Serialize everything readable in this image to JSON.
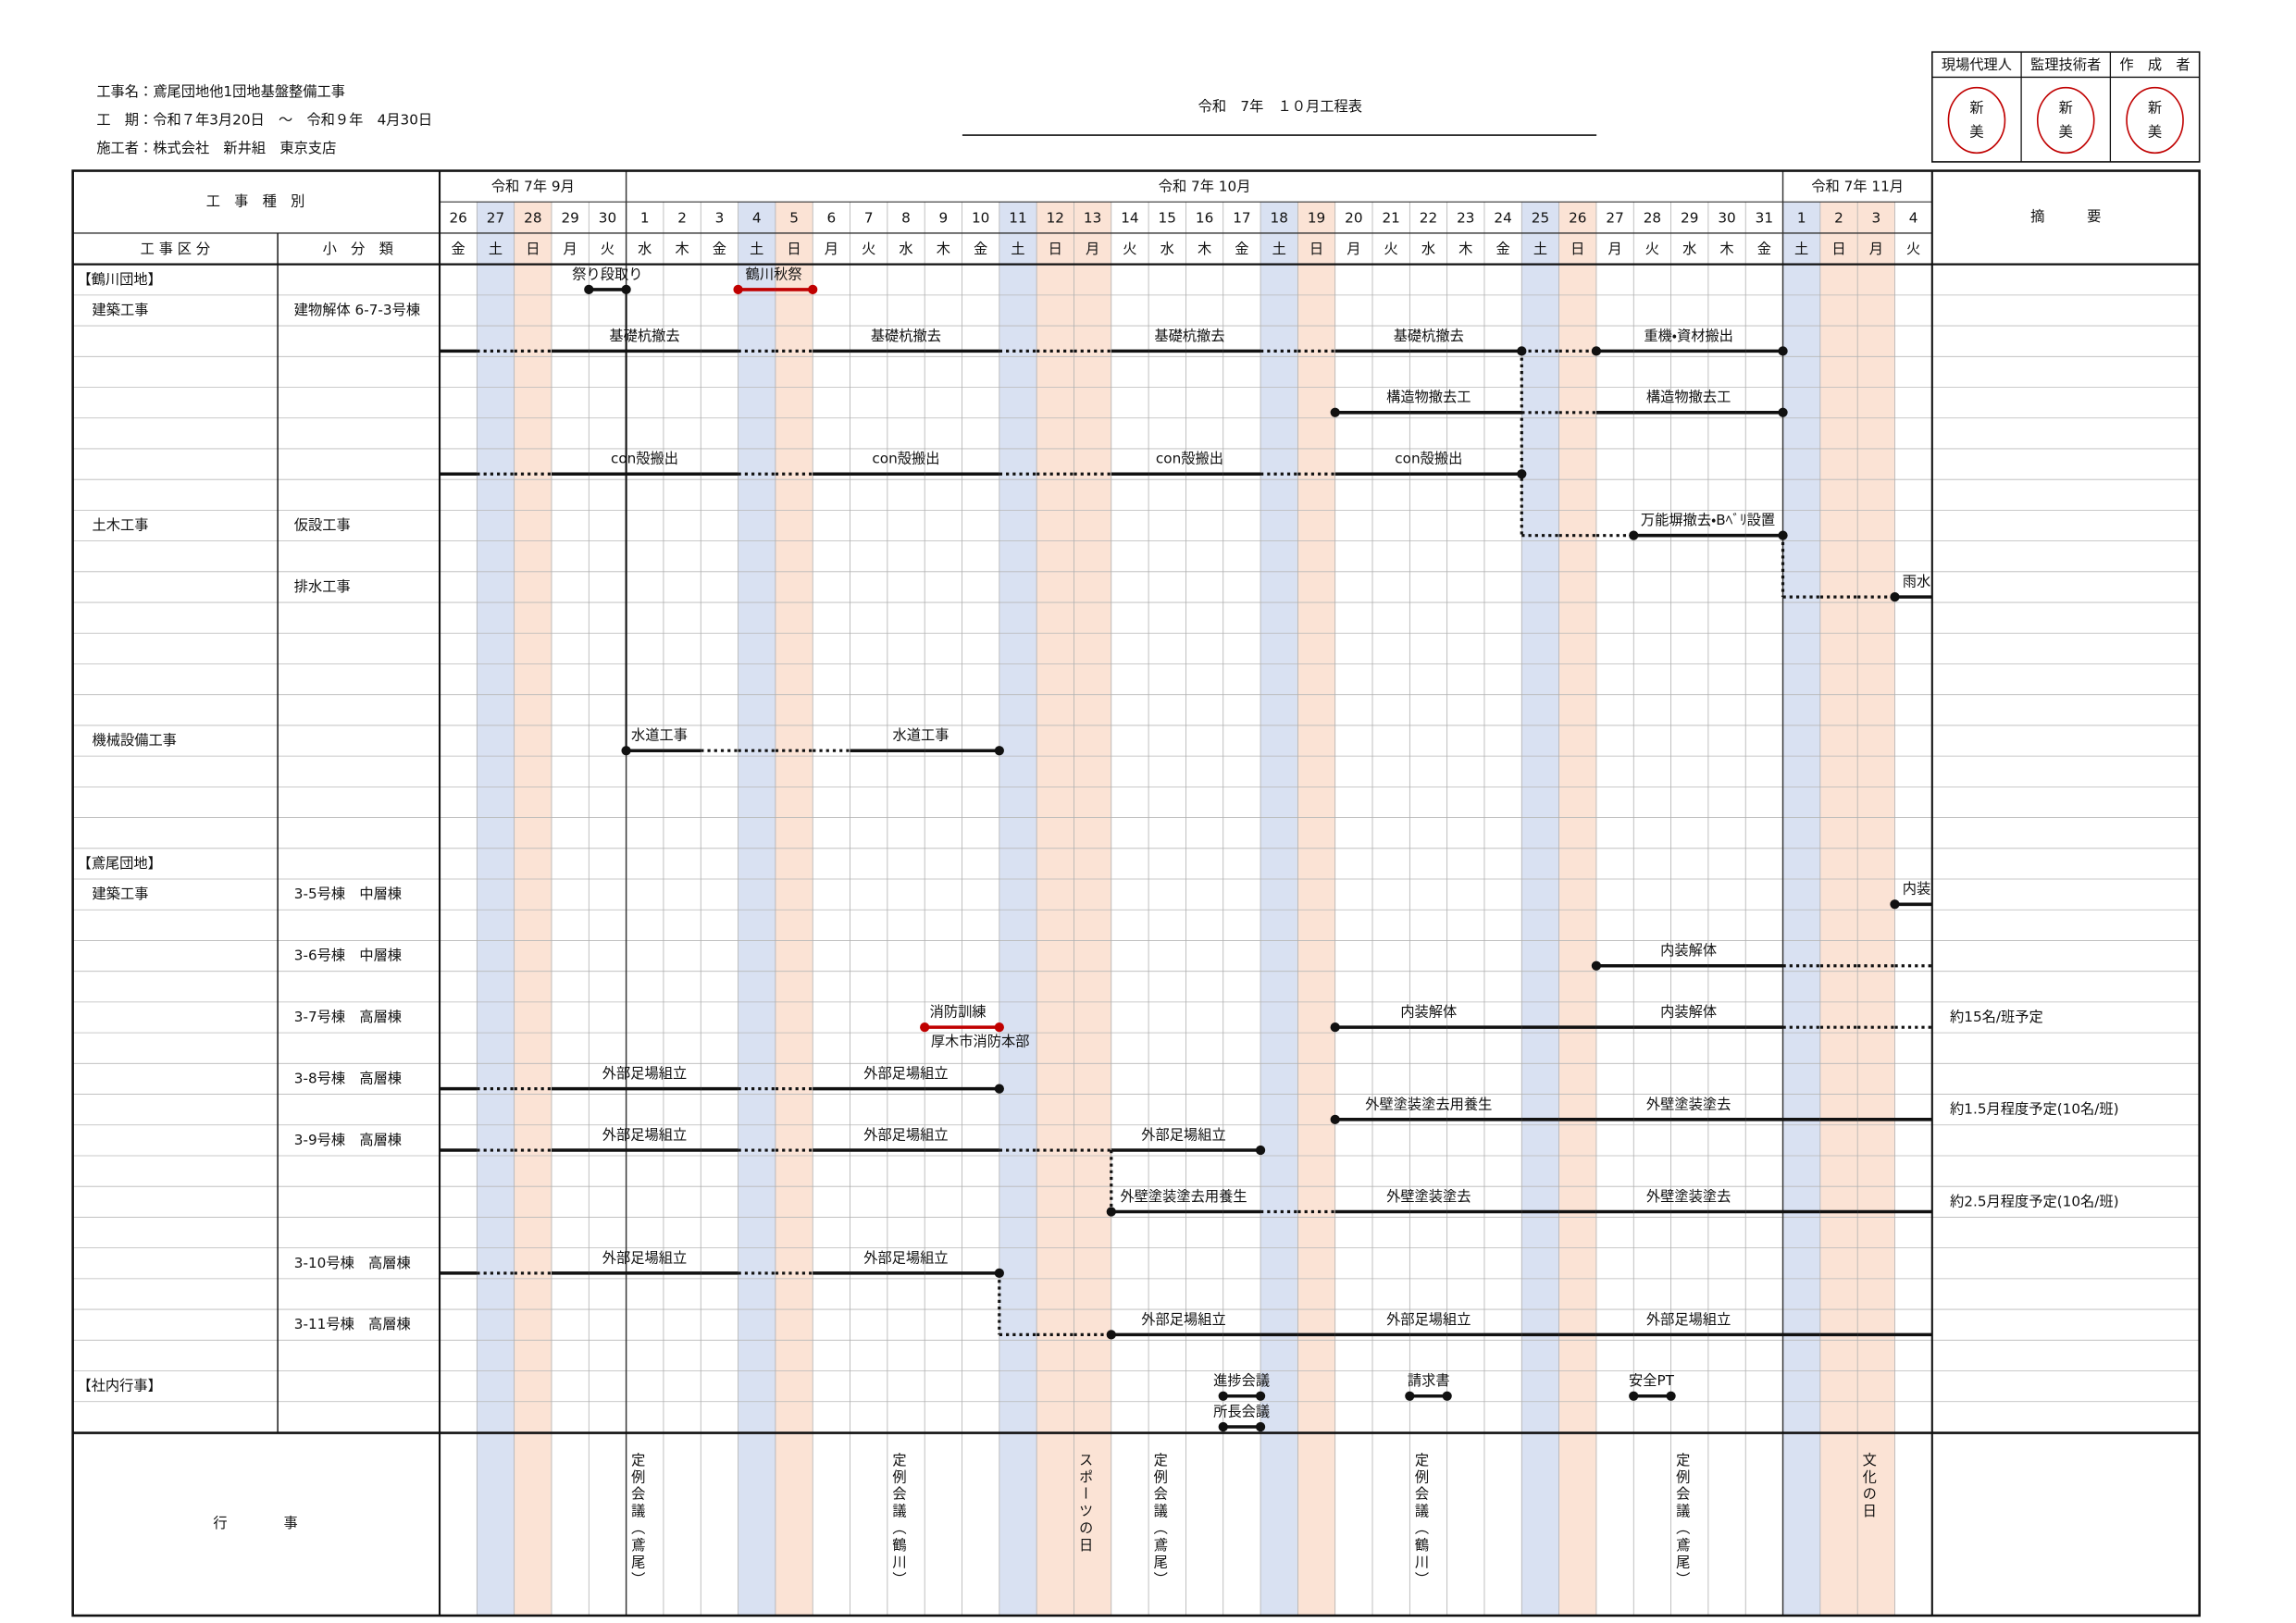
{
  "header": {
    "project": "工事名：鳶尾団地他1団地基盤整備工事",
    "period": "工　期：令和７年3月20日　～　令和９年　4月30日",
    "contractor": "施工者：株式会社　新井組　東京支店"
  },
  "title": "令和　7年　１０月工程表",
  "stamps": [
    {
      "role": "現場代理人",
      "seal": [
        "新",
        "美"
      ]
    },
    {
      "role": "監理技術者",
      "seal": [
        "新",
        "美"
      ]
    },
    {
      "role": "作　成　者",
      "seal": [
        "新",
        "美"
      ]
    }
  ],
  "table": {
    "category_header": "工　事　種　別",
    "division_header": "工 事 区 分",
    "subcategory_header": "小　分　類",
    "remarks_header": "摘　　　要",
    "months": [
      "令和 7年 9月",
      "令和 7年 10月",
      "令和 7年 11月"
    ],
    "days": [
      26,
      27,
      28,
      29,
      30,
      1,
      2,
      3,
      4,
      5,
      6,
      7,
      8,
      9,
      10,
      11,
      12,
      13,
      14,
      15,
      16,
      17,
      18,
      19,
      20,
      21,
      22,
      23,
      24,
      25,
      26,
      27,
      28,
      29,
      30,
      31,
      1,
      2,
      3,
      4
    ],
    "weekdays": [
      "金",
      "土",
      "日",
      "月",
      "火",
      "水",
      "木",
      "金",
      "土",
      "日",
      "月",
      "火",
      "水",
      "木",
      "金",
      "土",
      "日",
      "月",
      "火",
      "水",
      "木",
      "金",
      "土",
      "日",
      "月",
      "火",
      "水",
      "木",
      "金",
      "土",
      "日",
      "月",
      "火",
      "水",
      "木",
      "金",
      "土",
      "日",
      "月",
      "火"
    ],
    "rows": [
      {
        "section": "【鶴川団地】",
        "tasks": [
          "祭り段取り",
          "鶴川秋祭"
        ]
      },
      {
        "division": "建築工事",
        "subcategory": "建物解体 6-7-3号棟",
        "tasks": [
          "基礎杭撤去",
          "基礎杭撤去",
          "基礎杭撤去",
          "基礎杭撤去",
          "重機・資材搬出"
        ]
      },
      {
        "tasks": [
          "構造物撤去工",
          "構造物撤去工"
        ]
      },
      {
        "tasks": [
          "con殻搬出",
          "con殻搬出",
          "con殻搬出",
          "con殻搬出"
        ]
      },
      {
        "division": "土木工事",
        "subcategory": "仮設工事",
        "tasks": [
          "万能塀撤去・Bﾍﾞﾘ設置"
        ]
      },
      {
        "subcategory": "排水工事",
        "tasks": [
          "雨水"
        ]
      },
      {
        "division": "機械設備工事",
        "tasks": [
          "水道工事",
          "水道工事"
        ]
      },
      {
        "section": "【鳶尾団地】"
      },
      {
        "division": "建築工事",
        "subcategory": "3-5号棟　中層棟",
        "tasks": [
          "内装"
        ]
      },
      {
        "subcategory": "3-6号棟　中層棟",
        "tasks": [
          "内装解体"
        ]
      },
      {
        "subcategory": "3-7号棟　高層棟",
        "tasks": [
          "消防訓練",
          "内装解体",
          "内装解体"
        ],
        "venue": "厚木市消防本部",
        "note": "約15名/班予定"
      },
      {
        "subcategory": "3-8号棟　高層棟",
        "tasks": [
          "外部足場組立",
          "外部足場組立"
        ]
      },
      {
        "tasks": [
          "外壁塗装塗去用養生",
          "外壁塗装塗去"
        ],
        "note": "約1.5月程度予定(10名/班)"
      },
      {
        "subcategory": "3-9号棟　高層棟",
        "tasks": [
          "外部足場組立",
          "外部足場組立",
          "外部足場組立"
        ]
      },
      {
        "tasks": [
          "外壁塗装塗去用養生",
          "外壁塗装塗去",
          "外壁塗装塗去"
        ],
        "note": "約2.5月程度予定(10名/班)"
      },
      {
        "subcategory": "3-10号棟　高層棟",
        "tasks": [
          "外部足場組立",
          "外部足場組立"
        ]
      },
      {
        "subcategory": "3-11号棟　高層棟",
        "tasks": [
          "外部足場組立",
          "外部足場組立",
          "外部足場組立"
        ]
      },
      {
        "section": "【社内行事】",
        "tasks": [
          "進捗会議",
          "請求書",
          "安全PT"
        ]
      },
      {
        "tasks": [
          "所長会議"
        ]
      }
    ]
  },
  "events": {
    "label": "行　　　　事",
    "items": [
      "定例会議（鳶尾）",
      "定例会議（鶴川）",
      "スポーツの日",
      "定例会議（鳶尾）",
      "定例会議（鶴川）",
      "定例会議（鳶尾）",
      "文化の日"
    ]
  }
}
